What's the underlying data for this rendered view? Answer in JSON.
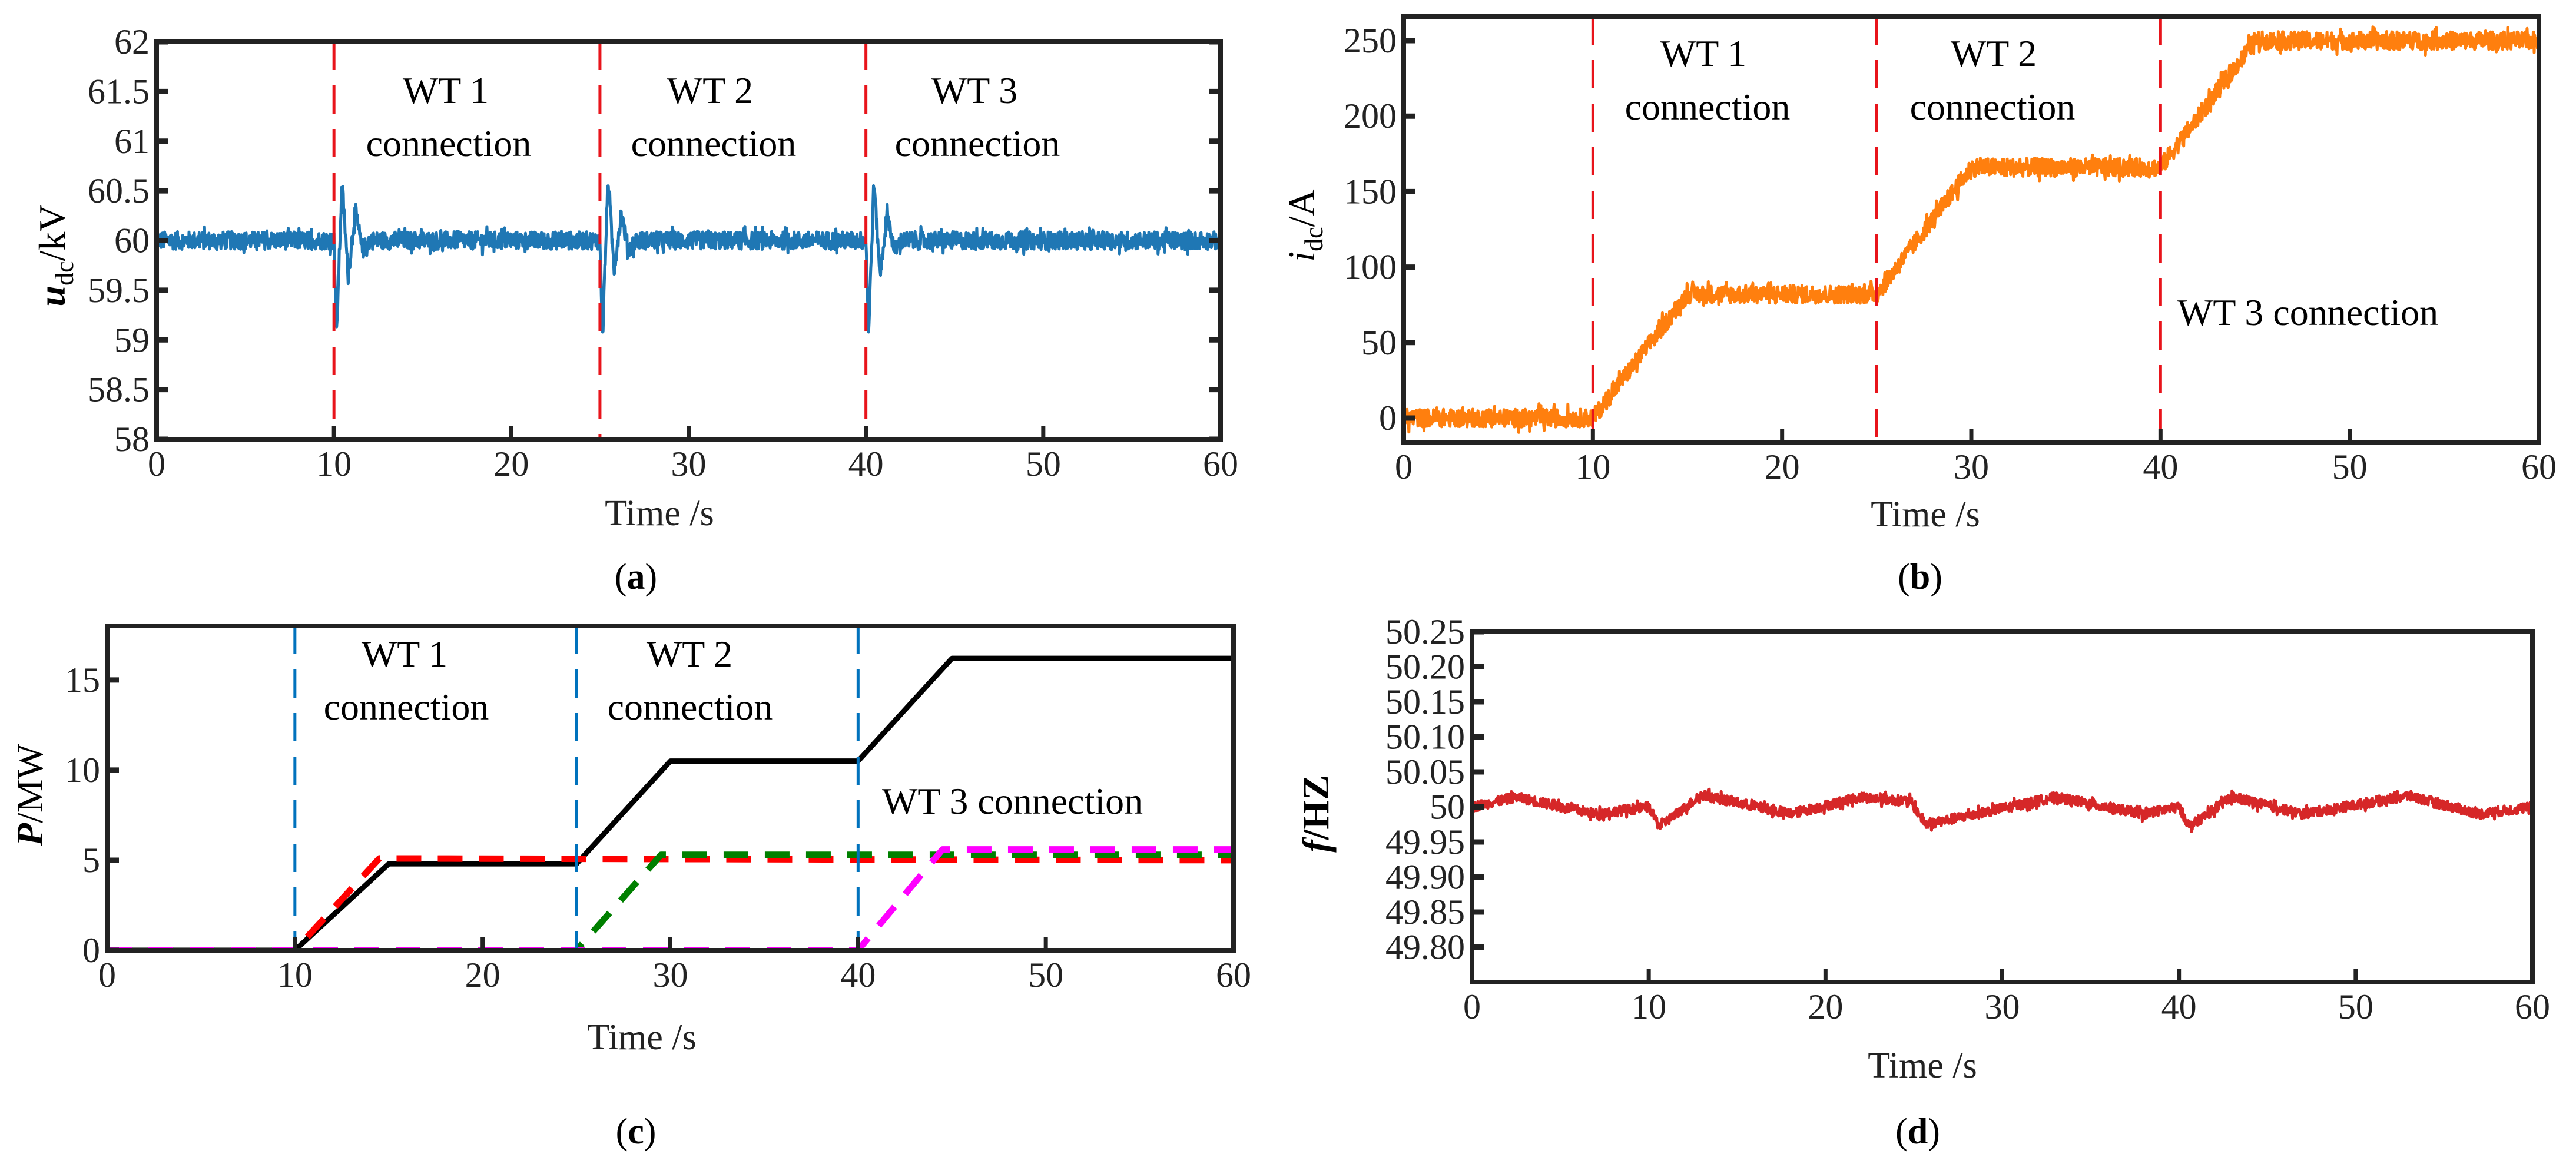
{
  "chart_data": [
    {
      "type": "line",
      "caption": {
        "open": "(",
        "letter": "a",
        "close": ")"
      },
      "xlabel": "Time /s",
      "ylabel": {
        "var": "u",
        "sub": "dc",
        "unit": "/kV"
      },
      "xlim": [
        0,
        60
      ],
      "ylim": [
        58,
        62
      ],
      "xticks": [
        "0",
        "10",
        "20",
        "30",
        "40",
        "50",
        "60"
      ],
      "yticks": [
        "58",
        "58.5",
        "59",
        "59.5",
        "60",
        "60.5",
        "61",
        "61.5",
        "62"
      ],
      "vlines": {
        "x": [
          10,
          25,
          40
        ],
        "color": "#e8141b"
      },
      "annotations": [
        {
          "l1": "WT 1",
          "l2": "connection"
        },
        {
          "l1": "WT 2",
          "l2": "connection"
        },
        {
          "l1": "WT 3",
          "l2": "connection"
        }
      ],
      "series": [
        {
          "color": "#1f77b4",
          "style": "solid",
          "noise": 0.09,
          "x": [
            0,
            10,
            10.15,
            10.45,
            10.8,
            11.2,
            11.6,
            12.0,
            25,
            25.15,
            25.45,
            25.8,
            26.2,
            26.6,
            27.0,
            40,
            40.15,
            40.45,
            40.8,
            41.2,
            41.6,
            42.0,
            60
          ],
          "y": [
            60,
            60,
            59.05,
            60.6,
            59.65,
            60.3,
            59.9,
            60,
            60,
            59.02,
            60.62,
            59.7,
            60.28,
            59.9,
            60,
            60,
            59.05,
            60.6,
            59.65,
            60.28,
            59.9,
            60,
            60
          ]
        }
      ]
    },
    {
      "type": "line",
      "caption": {
        "open": "(",
        "letter": "b",
        "close": ")"
      },
      "xlabel": "Time /s",
      "ylabel": {
        "var": "i",
        "sub": "dc",
        "unit": "/A"
      },
      "xlim": [
        0,
        60
      ],
      "ylim": [
        -16,
        266
      ],
      "xticks": [
        "0",
        "10",
        "20",
        "30",
        "40",
        "50",
        "60"
      ],
      "yticks": [
        "0",
        "50",
        "100",
        "150",
        "200",
        "250"
      ],
      "vlines": {
        "x": [
          10,
          25,
          40
        ],
        "color": "#e8141b"
      },
      "annotations": [
        {
          "l1": "WT 1",
          "l2": "connection"
        },
        {
          "l1": "WT 2",
          "l2": "connection"
        },
        {
          "l1": "WT 3 connection"
        }
      ],
      "series": [
        {
          "color": "#ff7f0e",
          "style": "solid",
          "noise": 6,
          "x": [
            0,
            10,
            15,
            25,
            30,
            40,
            45,
            60
          ],
          "y": [
            0,
            0,
            82,
            82,
            166,
            166,
            250,
            250
          ]
        }
      ]
    },
    {
      "type": "line",
      "caption": {
        "open": "(",
        "letter": "c",
        "close": ")"
      },
      "xlabel": "Time /s",
      "ylabel": {
        "var": "P",
        "unit": "/MW"
      },
      "xlim": [
        0,
        60
      ],
      "ylim": [
        0,
        18
      ],
      "xticks": [
        "0",
        "10",
        "20",
        "30",
        "40",
        "50",
        "60"
      ],
      "yticks": [
        "0",
        "5",
        "10",
        "15"
      ],
      "vlines": {
        "x": [
          10,
          25,
          40
        ],
        "color": "#0072bd"
      },
      "annotations": [
        {
          "l1": "WT 1",
          "l2": "connection"
        },
        {
          "l1": "WT 2",
          "l2": "connection"
        },
        {
          "l1": "WT 3 connection"
        }
      ],
      "series": [
        {
          "color": "#000000",
          "style": "solid",
          "noise": 0,
          "x": [
            0,
            10,
            15,
            25,
            30,
            40,
            45,
            60
          ],
          "y": [
            0,
            0,
            4.8,
            4.8,
            10.5,
            10.5,
            16.2,
            16.2
          ]
        },
        {
          "color": "#ff0000",
          "style": "dashed",
          "noise": 0,
          "x": [
            0,
            10,
            14.5,
            60
          ],
          "y": [
            0,
            0,
            5.1,
            5.0
          ]
        },
        {
          "color": "#008000",
          "style": "dashed",
          "noise": 0,
          "x": [
            0,
            25,
            29.5,
            60
          ],
          "y": [
            0,
            0,
            5.3,
            5.3
          ]
        },
        {
          "color": "#ff00ff",
          "style": "dashed",
          "noise": 0,
          "x": [
            0,
            40,
            44.5,
            60
          ],
          "y": [
            0,
            0,
            5.6,
            5.6
          ]
        }
      ]
    },
    {
      "type": "line",
      "caption": {
        "open": "(",
        "letter": "d",
        "close": ")"
      },
      "xlabel": "Time /s",
      "ylabel": {
        "var": "f",
        "unit": "/HZ"
      },
      "xlim": [
        0,
        60
      ],
      "ylim": [
        49.75,
        50.25
      ],
      "xticks": [
        "0",
        "10",
        "20",
        "30",
        "40",
        "50",
        "60"
      ],
      "yticks": [
        "49.80",
        "49.85",
        "49.90",
        "49.95",
        "50",
        "50.05",
        "50.10",
        "50.15",
        "50.20",
        "50.25"
      ],
      "vlines": null,
      "annotations": [],
      "series": [
        {
          "color": "#d62728",
          "style": "solid",
          "noise": 0.007,
          "x": [
            0,
            2.5,
            7,
            10,
            10.6,
            13,
            18,
            22,
            24.8,
            25.7,
            33,
            38,
            40,
            40.6,
            43,
            47,
            53,
            57,
            60
          ],
          "y": [
            50.0,
            50.014,
            49.99,
            50.0,
            49.972,
            50.017,
            49.99,
            50.014,
            50.008,
            49.975,
            50.014,
            49.99,
            50.0,
            49.972,
            50.014,
            49.99,
            50.016,
            49.99,
            50.0
          ]
        }
      ]
    }
  ]
}
